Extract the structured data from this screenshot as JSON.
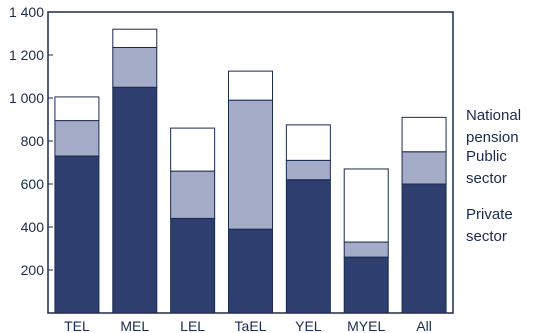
{
  "chart_data": {
    "type": "bar",
    "stacked": true,
    "title": "",
    "xlabel": "",
    "ylabel": "",
    "ylim": [
      0,
      1400
    ],
    "yticks": [
      "200",
      "400",
      "600",
      "800",
      "1 000",
      "1 200",
      "1 400"
    ],
    "grid": false,
    "legend_position": "right",
    "categories": [
      "TEL",
      "MEL",
      "LEL",
      "TaEL",
      "YEL",
      "MYEL",
      "All"
    ],
    "series": [
      {
        "name": "Private sector",
        "values": [
          730,
          1050,
          440,
          390,
          620,
          260,
          600
        ],
        "color": "#2e3e6e"
      },
      {
        "name": "Public sector",
        "values": [
          165,
          185,
          220,
          600,
          90,
          70,
          150
        ],
        "color": "#a4acc8"
      },
      {
        "name": "National pension",
        "values": [
          110,
          85,
          200,
          135,
          165,
          340,
          160
        ],
        "color": "#ffffff"
      }
    ]
  }
}
